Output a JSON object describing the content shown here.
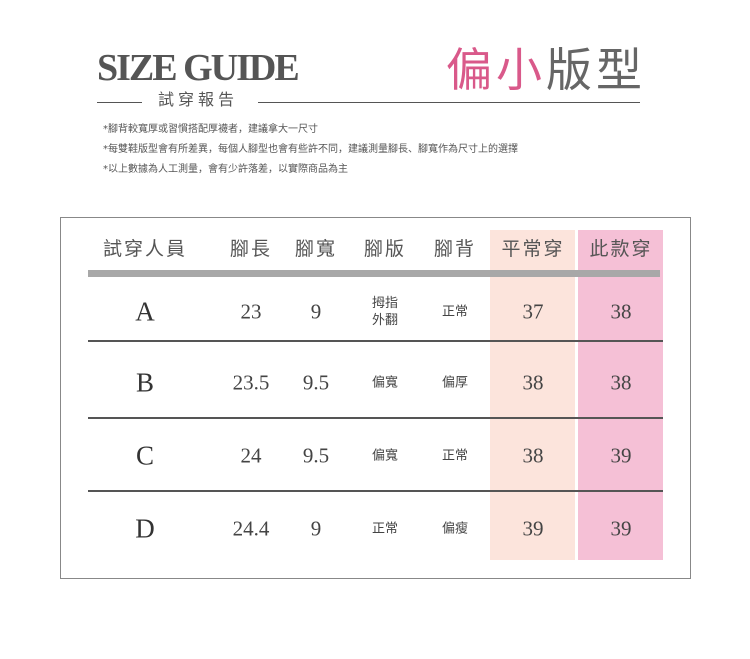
{
  "header": {
    "title": "SIZE GUIDE",
    "subtitle": "試穿報告",
    "badge_pink": "偏小",
    "badge_grey": "版型"
  },
  "notes": [
    "*腳背較寬厚或習慣搭配厚襪者，建議拿大一尺寸",
    "*每雙鞋版型會有所差異，每個人腳型也會有些許不同，建議測量腳長、腳寬作為尺寸上的選擇",
    "*以上數據為人工測量，會有少許落差，以實際商品為主"
  ],
  "colors": {
    "normal_col": "#fce4dc",
    "this_col": "#f5c0d6",
    "accent": "#d9598a"
  },
  "table": {
    "headers": [
      "試穿人員",
      "腳長",
      "腳寬",
      "腳版",
      "腳背",
      "平常穿",
      "此款穿"
    ],
    "rows": [
      {
        "name": "A",
        "length": "23",
        "width": "9",
        "shape": "拇指\n外翻",
        "instep": "正常",
        "normal": "37",
        "this": "38"
      },
      {
        "name": "B",
        "length": "23.5",
        "width": "9.5",
        "shape": "偏寬",
        "instep": "偏厚",
        "normal": "38",
        "this": "38"
      },
      {
        "name": "C",
        "length": "24",
        "width": "9.5",
        "shape": "偏寬",
        "instep": "正常",
        "normal": "38",
        "this": "39"
      },
      {
        "name": "D",
        "length": "24.4",
        "width": "9",
        "shape": "正常",
        "instep": "偏瘦",
        "normal": "39",
        "this": "39"
      }
    ]
  }
}
